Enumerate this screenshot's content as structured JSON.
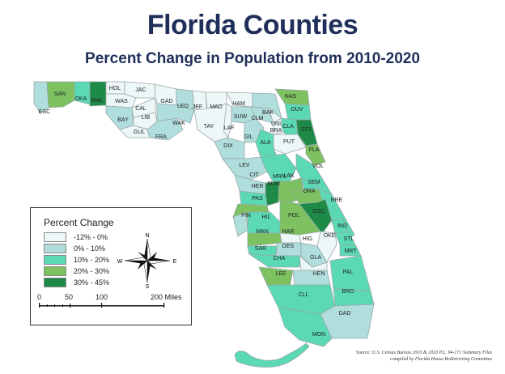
{
  "title": "Florida Counties",
  "subtitle": "Percent Change in Population from 2010-2020",
  "legend": {
    "title": "Percent Change",
    "items": [
      {
        "label": "-12% - 0%",
        "color": "#eef7f7"
      },
      {
        "label": "0% - 10%",
        "color": "#b0dedd"
      },
      {
        "label": "10% - 20%",
        "color": "#5ad9b4"
      },
      {
        "label": "20% - 30%",
        "color": "#7dc161"
      },
      {
        "label": "30% - 45%",
        "color": "#1e8a47"
      }
    ],
    "scale": {
      "ticks": [
        "0",
        "50",
        "100",
        "200 Miles"
      ]
    },
    "compass": {
      "n": "N",
      "s": "S",
      "e": "E",
      "w": "W"
    }
  },
  "counties": [
    {
      "name": "ESC",
      "class": 2
    },
    {
      "name": "SAN",
      "class": 4
    },
    {
      "name": "OKA",
      "class": 3
    },
    {
      "name": "WAL",
      "class": 5
    },
    {
      "name": "HOL",
      "class": 1
    },
    {
      "name": "JAC",
      "class": 1
    },
    {
      "name": "WAS",
      "class": 1
    },
    {
      "name": "BAY",
      "class": 2
    },
    {
      "name": "CAL",
      "class": 1
    },
    {
      "name": "GUL",
      "class": 1
    },
    {
      "name": "LIB",
      "class": 1
    },
    {
      "name": "GAD",
      "class": 1
    },
    {
      "name": "FRA",
      "class": 2
    },
    {
      "name": "LEO",
      "class": 2
    },
    {
      "name": "WAK",
      "class": 2
    },
    {
      "name": "JEF",
      "class": 1
    },
    {
      "name": "MAD",
      "class": 1
    },
    {
      "name": "TAY",
      "class": 1
    },
    {
      "name": "HAM",
      "class": 1
    },
    {
      "name": "SUW",
      "class": 2
    },
    {
      "name": "LAF",
      "class": 1
    },
    {
      "name": "DIX",
      "class": 2
    },
    {
      "name": "CLM",
      "class": 2
    },
    {
      "name": "GIL",
      "class": 2
    },
    {
      "name": "UNI",
      "class": 1
    },
    {
      "name": "BRA",
      "class": 1
    },
    {
      "name": "BAK",
      "class": 2
    },
    {
      "name": "NAS",
      "class": 4
    },
    {
      "name": "DUV",
      "class": 3
    },
    {
      "name": "CLA",
      "class": 3
    },
    {
      "name": "STJ",
      "class": 5
    },
    {
      "name": "PUT",
      "class": 1
    },
    {
      "name": "FLA",
      "class": 4
    },
    {
      "name": "ALA",
      "class": 3
    },
    {
      "name": "LEV",
      "class": 2
    },
    {
      "name": "MRN",
      "class": 3
    },
    {
      "name": "VOL",
      "class": 3
    },
    {
      "name": "CIT",
      "class": 2
    },
    {
      "name": "SUM",
      "class": 5
    },
    {
      "name": "LAK",
      "class": 4
    },
    {
      "name": "SEM",
      "class": 3
    },
    {
      "name": "HER",
      "class": 3
    },
    {
      "name": "ORA",
      "class": 4
    },
    {
      "name": "BRE",
      "class": 3
    },
    {
      "name": "PAS",
      "class": 4
    },
    {
      "name": "PIN",
      "class": 2
    },
    {
      "name": "HIL",
      "class": 3
    },
    {
      "name": "POL",
      "class": 4
    },
    {
      "name": "OSC",
      "class": 5
    },
    {
      "name": "IND",
      "class": 3
    },
    {
      "name": "MAN",
      "class": 4
    },
    {
      "name": "HAR",
      "class": 1
    },
    {
      "name": "OKE",
      "class": 1
    },
    {
      "name": "STL",
      "class": 3
    },
    {
      "name": "SAR",
      "class": 3
    },
    {
      "name": "DES",
      "class": 2
    },
    {
      "name": "HIG",
      "class": 2
    },
    {
      "name": "MRT",
      "class": 3
    },
    {
      "name": "CHA",
      "class": 3
    },
    {
      "name": "GLA",
      "class": 1
    },
    {
      "name": "LEE",
      "class": 4
    },
    {
      "name": "HEN",
      "class": 2
    },
    {
      "name": "PAL",
      "class": 3
    },
    {
      "name": "BRO",
      "class": 3
    },
    {
      "name": "CLL",
      "class": 3
    },
    {
      "name": "DAD",
      "class": 2
    },
    {
      "name": "MON",
      "class": 3
    }
  ],
  "source": [
    "Source: U.S. Census Bureau 2010 & 2020 P.L. 94-171 Summary Files",
    "compiled by Florida House Redistricting Committee"
  ]
}
